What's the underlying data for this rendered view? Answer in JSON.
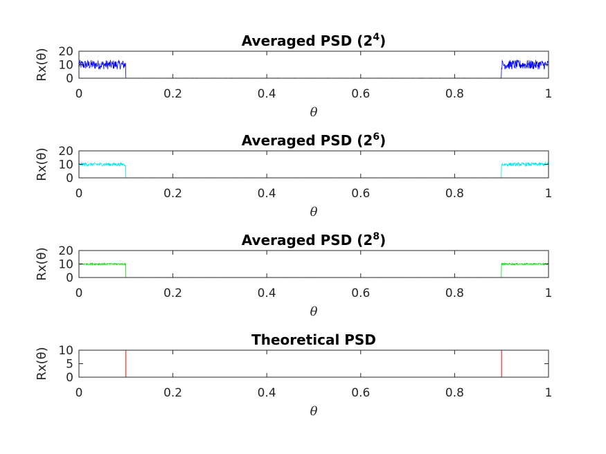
{
  "chart_data": [
    {
      "type": "line",
      "title": "Averaged PSD (2",
      "title_exp": "4",
      "title_close": ")",
      "xlabel": "θ",
      "ylabel": "Rx(θ)",
      "xlim": [
        0,
        1
      ],
      "ylim": [
        0,
        20
      ],
      "xticks": [
        "0",
        "0.2",
        "0.4",
        "0.6",
        "0.8",
        "1"
      ],
      "yticks": [
        "0",
        "10",
        "20"
      ],
      "color": "#0000ff",
      "series": [
        {
          "x": [
            0,
            0.1,
            0.1,
            0.9,
            0.9,
            1
          ],
          "values": [
            10,
            10,
            0,
            0,
            10,
            10
          ],
          "noise_amplitude": 3.5
        }
      ]
    },
    {
      "type": "line",
      "title": "Averaged PSD (2",
      "title_exp": "6",
      "title_close": ")",
      "xlabel": "θ",
      "ylabel": "Rx(θ)",
      "xlim": [
        0,
        1
      ],
      "ylim": [
        0,
        20
      ],
      "xticks": [
        "0",
        "0.2",
        "0.4",
        "0.6",
        "0.8",
        "1"
      ],
      "yticks": [
        "0",
        "10",
        "20"
      ],
      "color": "#00e5ee",
      "series": [
        {
          "x": [
            0,
            0.1,
            0.1,
            0.9,
            0.9,
            1
          ],
          "values": [
            10,
            10,
            0,
            0,
            10,
            10
          ],
          "noise_amplitude": 1.3
        }
      ]
    },
    {
      "type": "line",
      "title": "Averaged PSD (2",
      "title_exp": "8",
      "title_close": ")",
      "xlabel": "θ",
      "ylabel": "Rx(θ)",
      "xlim": [
        0,
        1
      ],
      "ylim": [
        0,
        20
      ],
      "xticks": [
        "0",
        "0.2",
        "0.4",
        "0.6",
        "0.8",
        "1"
      ],
      "yticks": [
        "0",
        "10",
        "20"
      ],
      "color": "#00dd00",
      "series": [
        {
          "x": [
            0,
            0.1,
            0.1,
            0.9,
            0.9,
            1
          ],
          "values": [
            10,
            10,
            0,
            0,
            10,
            10
          ],
          "noise_amplitude": 0.6
        }
      ]
    },
    {
      "type": "line",
      "title": "Theoretical PSD",
      "title_exp": "",
      "title_close": "",
      "xlabel": "θ",
      "ylabel": "Rx(θ)",
      "xlim": [
        0,
        1
      ],
      "ylim": [
        0,
        10
      ],
      "xticks": [
        "0",
        "0.2",
        "0.4",
        "0.6",
        "0.8",
        "1"
      ],
      "yticks": [
        "0",
        "5",
        "10"
      ],
      "color": "#ff0000",
      "series": [
        {
          "x": [
            0,
            0.1,
            0.1,
            0.9,
            0.9,
            1
          ],
          "values": [
            10,
            10,
            0,
            0,
            10,
            10
          ],
          "noise_amplitude": 0
        }
      ]
    }
  ]
}
